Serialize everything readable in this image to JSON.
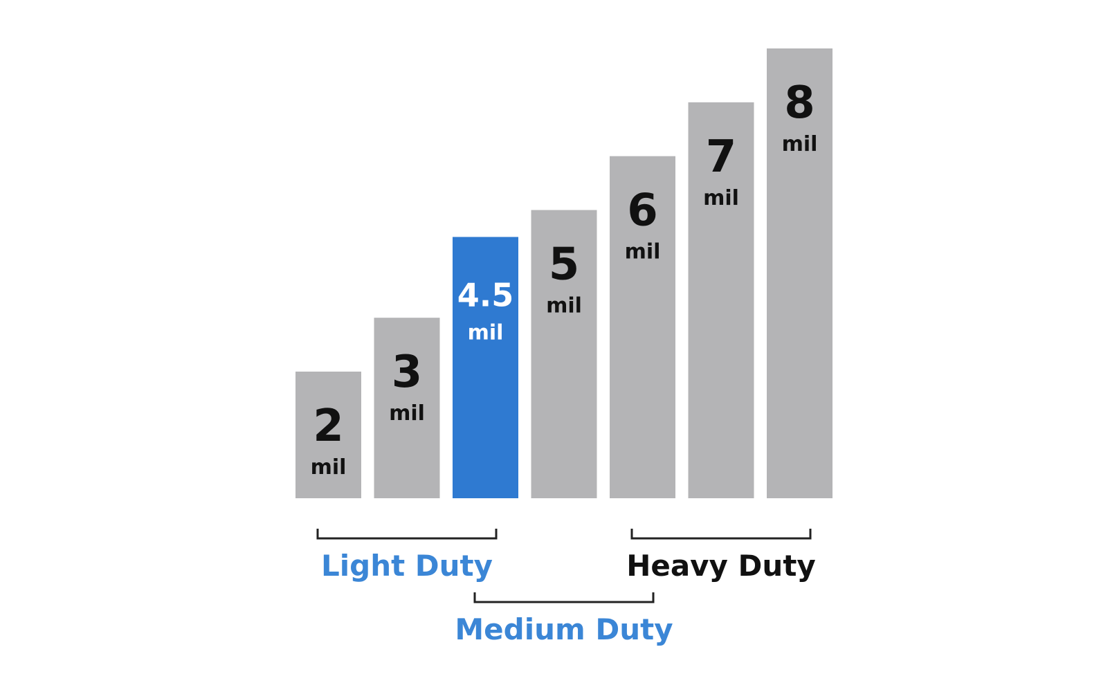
{
  "chart_data": {
    "type": "bar",
    "categories": [
      "2 mil",
      "3 mil",
      "4.5 mil",
      "5 mil",
      "6 mil",
      "7 mil",
      "8 mil"
    ],
    "values": [
      2,
      3,
      4.5,
      5,
      6,
      7,
      8
    ],
    "value_labels": [
      "2",
      "3",
      "4.5",
      "5",
      "6",
      "7",
      "8"
    ],
    "unit_label": "mil",
    "highlighted_index": 2,
    "colors": {
      "bar": "#b4b4b6",
      "highlight": "#2f7ad1",
      "label": "#111111",
      "highlight_label": "#ffffff",
      "light_duty": "#3b86d6",
      "medium_duty": "#3b86d6",
      "heavy_duty": "#111111"
    },
    "groups": [
      {
        "label": "Light Duty",
        "from": 0,
        "to": 2
      },
      {
        "label": "Medium Duty",
        "from": 2,
        "to": 4
      },
      {
        "label": "Heavy Duty",
        "from": 4,
        "to": 6
      }
    ],
    "ylim": [
      0,
      8
    ],
    "grid": false,
    "legend": "none"
  }
}
